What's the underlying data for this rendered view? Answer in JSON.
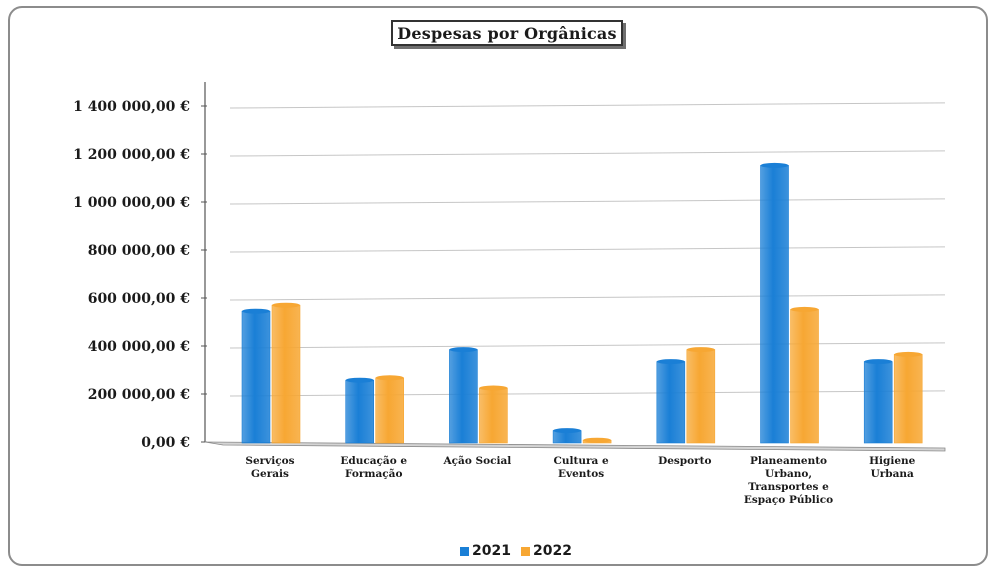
{
  "chart_data": {
    "type": "bar",
    "title": "Despesas por Orgânicas",
    "xlabel": "",
    "ylabel": "",
    "ylim": [
      0,
      1400000
    ],
    "y_ticks": [
      0,
      200000,
      400000,
      600000,
      800000,
      1000000,
      1200000,
      1400000
    ],
    "y_tick_labels": [
      "0,00 €",
      "200 000,00 €",
      "400 000,00 €",
      "600 000,00 €",
      "800 000,00 €",
      "1 000 000,00 €",
      "1 200 000,00 €",
      "1 400 000,00 €"
    ],
    "categories": [
      [
        "Serviços",
        "Gerais"
      ],
      [
        "Educação e",
        "Formação"
      ],
      [
        "Ação Social"
      ],
      [
        "Cultura e",
        "Eventos"
      ],
      [
        "Desporto"
      ],
      [
        "Planeamento",
        "Urbano,",
        "Transportes e",
        "Espaço Público"
      ],
      [
        "Higiene",
        "Urbana"
      ]
    ],
    "series": [
      {
        "name": "2021",
        "color": "#1a7fd6",
        "values": [
          545000,
          260000,
          390000,
          55000,
          345000,
          1165000,
          350000
        ]
      },
      {
        "name": "2022",
        "color": "#f7a733",
        "values": [
          570000,
          270000,
          230000,
          15000,
          395000,
          565000,
          380000
        ]
      }
    ],
    "grid": true,
    "legend": "bottom"
  }
}
